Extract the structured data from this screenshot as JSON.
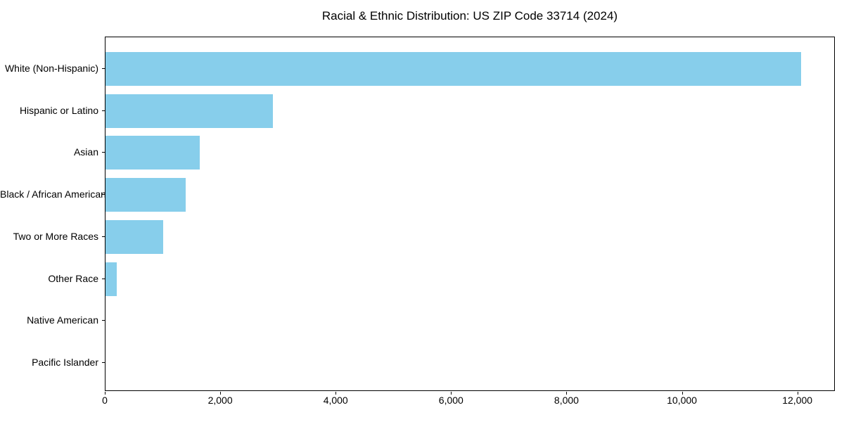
{
  "chart_data": {
    "type": "bar",
    "orientation": "horizontal",
    "title": "Racial & Ethnic Distribution: US ZIP Code 33714 (2024)",
    "categories": [
      "White (Non-Hispanic)",
      "Hispanic or Latino",
      "Asian",
      "Black / African American",
      "Two or More Races",
      "Other Race",
      "Native American",
      "Pacific Islander"
    ],
    "values": [
      12050,
      2900,
      1630,
      1390,
      1000,
      200,
      0,
      0
    ],
    "xlabel": "",
    "ylabel": "",
    "xlim": [
      0,
      12650
    ],
    "x_ticks": [
      0,
      2000,
      4000,
      6000,
      8000,
      10000,
      12000
    ],
    "x_tick_labels": [
      "0",
      "2,000",
      "4,000",
      "6,000",
      "8,000",
      "10,000",
      "12,000"
    ],
    "bar_color": "#87CEEB",
    "background_color": "#ffffff",
    "spine_color": "#000000",
    "grid": false,
    "legend": null
  }
}
